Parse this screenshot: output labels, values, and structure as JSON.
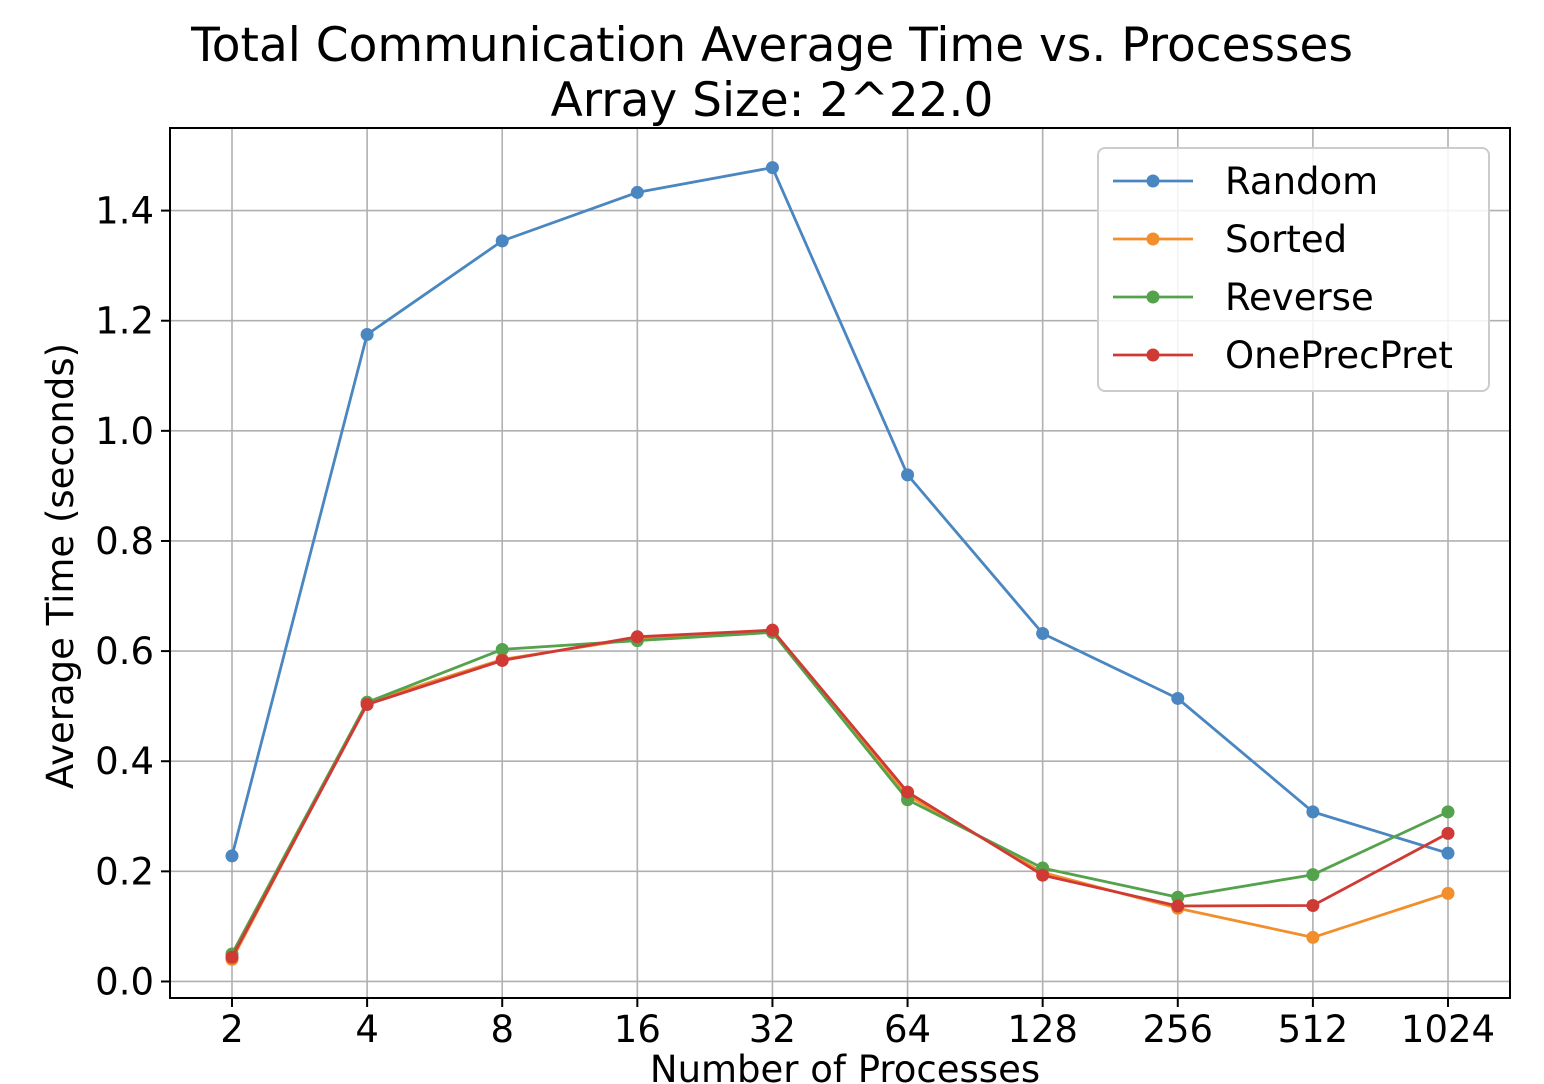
{
  "chart_data": {
    "type": "line",
    "title": "Total Communication Average Time vs. Processes",
    "subtitle": "Array Size: 2^22.0",
    "xlabel": "Number of Processes",
    "ylabel": "Average Time (seconds)",
    "x_scale": "log2",
    "categories": [
      "2",
      "4",
      "8",
      "16",
      "32",
      "64",
      "128",
      "256",
      "512",
      "1024"
    ],
    "x": [
      2,
      4,
      8,
      16,
      32,
      64,
      128,
      256,
      512,
      1024
    ],
    "ylim": [
      -0.03,
      1.55
    ],
    "yticks": [
      "0.0",
      "0.2",
      "0.4",
      "0.6",
      "0.8",
      "1.0",
      "1.2",
      "1.4"
    ],
    "ytick_values": [
      0.0,
      0.2,
      0.4,
      0.6,
      0.8,
      1.0,
      1.2,
      1.4
    ],
    "grid": true,
    "legend_position": "top-right",
    "series": [
      {
        "name": "Random",
        "color": "#4a86c0",
        "values": [
          0.228,
          1.175,
          1.345,
          1.433,
          1.478,
          0.92,
          0.632,
          0.514,
          0.308,
          0.233
        ]
      },
      {
        "name": "Sorted",
        "color": "#f28e2b",
        "values": [
          0.04,
          0.507,
          0.585,
          0.623,
          0.636,
          0.338,
          0.198,
          0.133,
          0.08,
          0.16
        ]
      },
      {
        "name": "Reverse",
        "color": "#54a24b",
        "values": [
          0.05,
          0.507,
          0.603,
          0.619,
          0.634,
          0.33,
          0.206,
          0.153,
          0.194,
          0.308
        ]
      },
      {
        "name": "OnePrecPret",
        "color": "#d03a35",
        "values": [
          0.044,
          0.503,
          0.583,
          0.626,
          0.638,
          0.344,
          0.193,
          0.137,
          0.138,
          0.269
        ]
      }
    ]
  }
}
